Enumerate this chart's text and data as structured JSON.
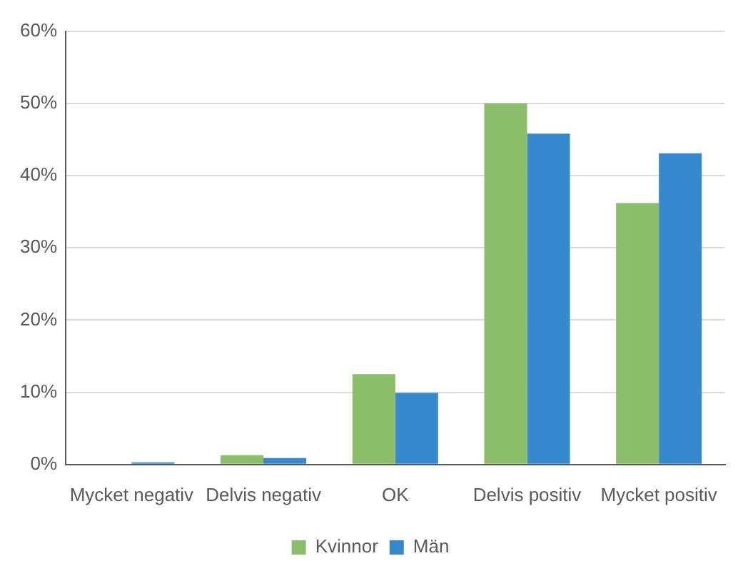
{
  "chart_data": {
    "type": "bar",
    "categories": [
      "Mycket negativ",
      "Delvis negativ",
      "OK",
      "Delvis positiv",
      "Mycket positiv"
    ],
    "series": [
      {
        "name": "Kvinnor",
        "color": "#8cbd6a",
        "values": [
          0,
          1.3,
          12.5,
          50,
          36.2
        ]
      },
      {
        "name": "Män",
        "color": "#3589cc",
        "values": [
          0.3,
          0.9,
          9.9,
          45.8,
          43.1
        ]
      }
    ],
    "ylim": [
      0,
      60
    ],
    "yticks": [
      {
        "value": 0,
        "label": "0%"
      },
      {
        "value": 10,
        "label": "10%"
      },
      {
        "value": 20,
        "label": "20%"
      },
      {
        "value": 30,
        "label": "30%"
      },
      {
        "value": 40,
        "label": "40%"
      },
      {
        "value": 50,
        "label": "50%"
      },
      {
        "value": 60,
        "label": "60%"
      }
    ],
    "grid": "y",
    "legend": "bottom"
  }
}
